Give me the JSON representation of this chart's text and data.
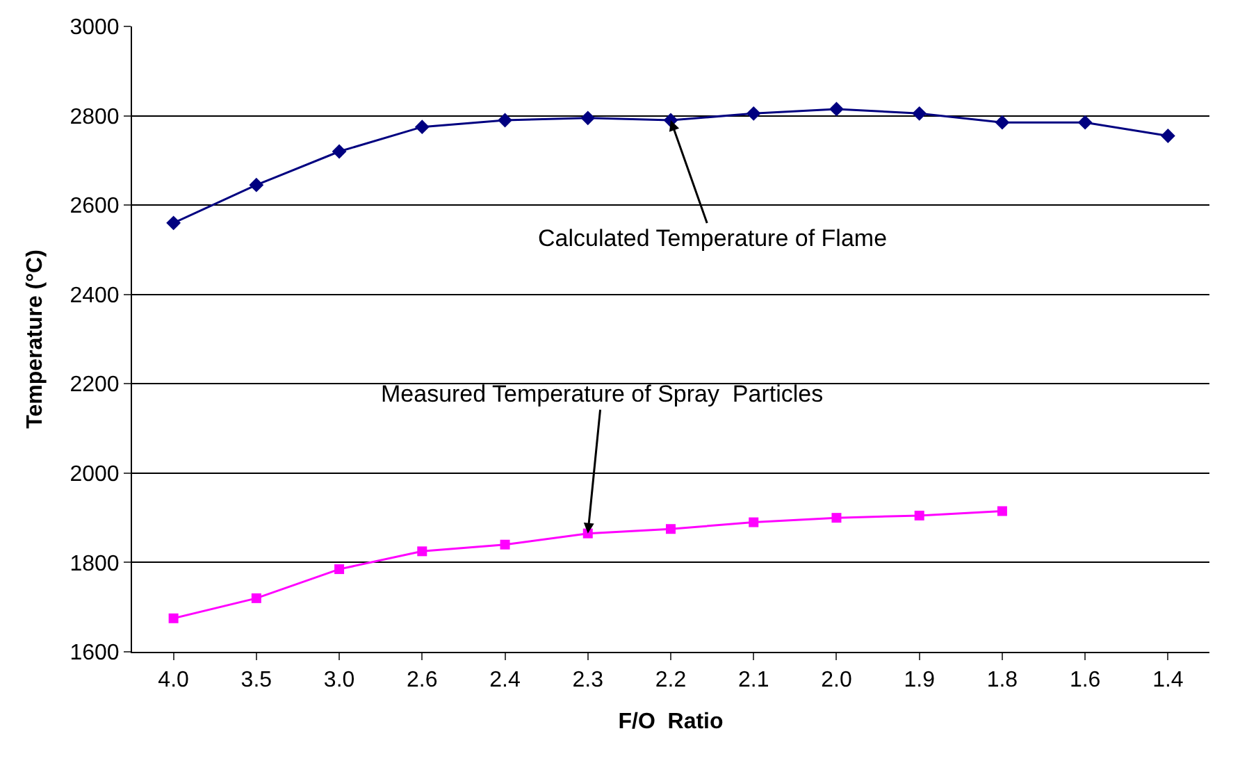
{
  "chart_data": {
    "type": "line",
    "xlabel": "F/O  Ratio",
    "ylabel": "Temperature (°C)",
    "categories": [
      "4.0",
      "3.5",
      "3.0",
      "2.6",
      "2.4",
      "2.3",
      "2.2",
      "2.1",
      "2.0",
      "1.9",
      "1.8",
      "1.6",
      "1.4"
    ],
    "series": [
      {
        "color": "#000080",
        "marker": "diamond",
        "values": [
          2560,
          2645,
          2720,
          2775,
          2790,
          2795,
          2790,
          2805,
          2815,
          2805,
          2785,
          2785,
          2755
        ]
      },
      {
        "color": "#ff00ff",
        "marker": "square",
        "values": [
          1675,
          1720,
          1785,
          1825,
          1840,
          1865,
          1875,
          1890,
          1900,
          1905,
          1915,
          null,
          null
        ]
      }
    ],
    "annotations": [
      {
        "text": "Calculated Temperature of Flame",
        "x": "2.2",
        "y": 2790
      },
      {
        "text": "Measured Temperature of Spray  Particles",
        "x": "2.3",
        "y": 1865
      }
    ],
    "ylim": [
      1600,
      3000
    ],
    "yticks": [
      1600,
      1800,
      2000,
      2200,
      2400,
      2600,
      2800,
      3000
    ],
    "grid": "y"
  }
}
